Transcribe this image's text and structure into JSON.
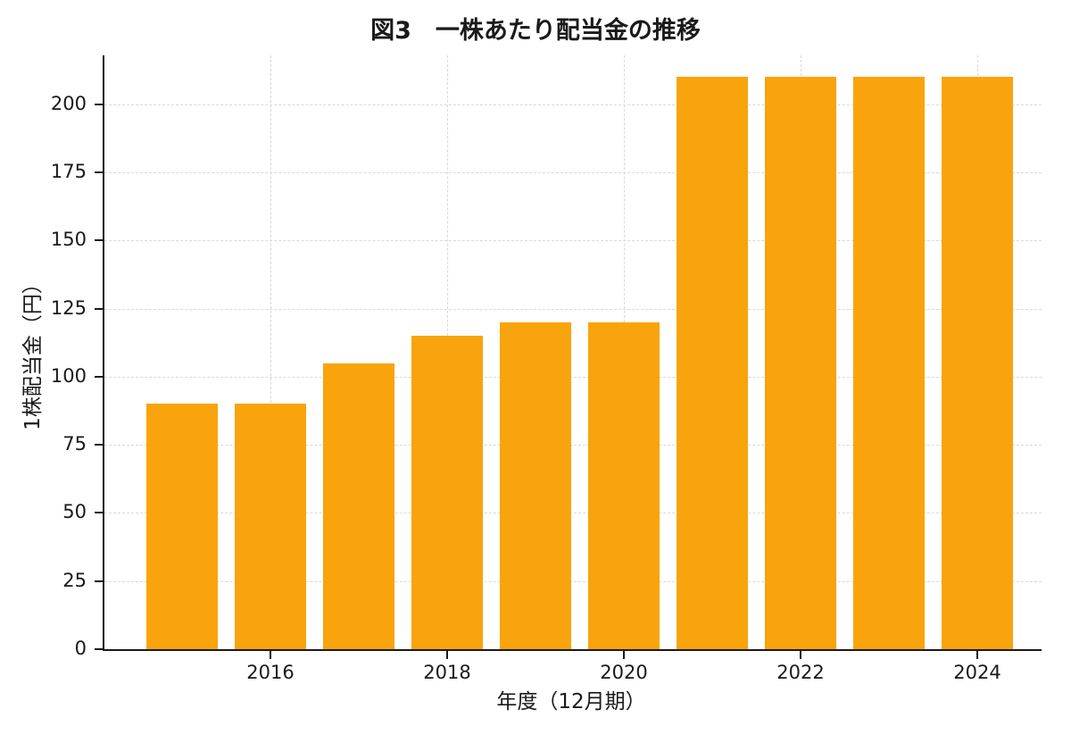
{
  "chart_data": {
    "type": "bar",
    "title": "図3　一株あたり配当金の推移",
    "xlabel": "年度（12月期）",
    "ylabel": "1株配当金（円）",
    "categories": [
      2015,
      2016,
      2017,
      2018,
      2019,
      2020,
      2021,
      2022,
      2023,
      2024
    ],
    "values": [
      90,
      90,
      105,
      115,
      120,
      120,
      210,
      210,
      210,
      210
    ],
    "xticks": [
      2016,
      2018,
      2020,
      2022,
      2024
    ],
    "yticks": [
      0,
      25,
      50,
      75,
      100,
      125,
      150,
      175,
      200
    ],
    "ylim": [
      0,
      218
    ],
    "grid": "dashed",
    "legend": "none",
    "bar_color": "#F9A40D",
    "grid_color": "#d9d9d9",
    "axis_color": "#1a1a1a"
  }
}
